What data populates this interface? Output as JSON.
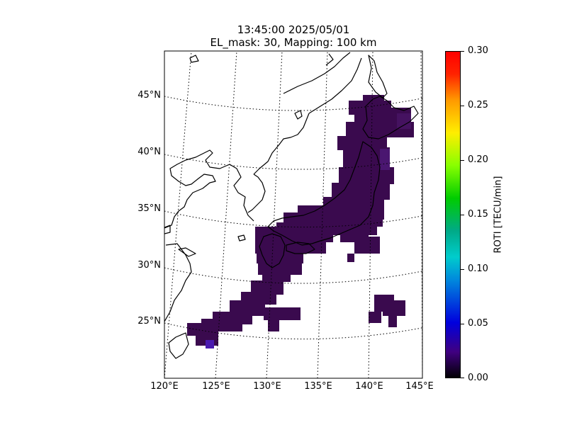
{
  "title": {
    "line1": "13:45:00 2025/05/01",
    "line2": "EL_mask: 30, Mapping: 100 km"
  },
  "lat_labels": [
    "45°N",
    "40°N",
    "35°N",
    "30°N",
    "25°N"
  ],
  "lon_labels": [
    "120°E",
    "125°E",
    "130°E",
    "135°E",
    "140°E",
    "145°E"
  ],
  "colorbar": {
    "label": "ROTI [TECU/min]",
    "ticks": [
      "0.30",
      "0.25",
      "0.20",
      "0.15",
      "0.10",
      "0.05",
      "0.00"
    ],
    "range": [
      0.0,
      0.3
    ],
    "colormap": "nipy_spectral"
  },
  "map": {
    "region": {
      "lon": [
        120,
        145
      ],
      "lat": [
        20,
        48
      ]
    },
    "grid_style": "dotted",
    "land_color": "#ffffff",
    "coastline_color": "#000000",
    "data_color": "#3a0a4e",
    "data_note_values": "ROTI mostly 0.00–0.05 over Japan, Ryukyu Islands and Ogasawara region"
  }
}
